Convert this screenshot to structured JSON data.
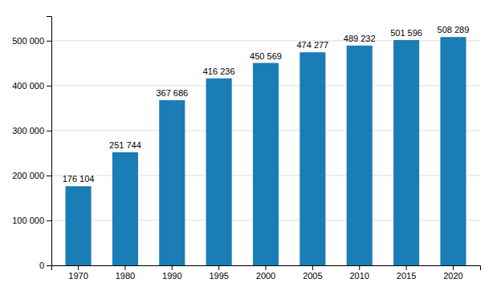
{
  "chart_data": {
    "type": "bar",
    "categories": [
      "1970",
      "1980",
      "1990",
      "1995",
      "2000",
      "2005",
      "2010",
      "2015",
      "2020"
    ],
    "values": [
      176104,
      251744,
      367686,
      416236,
      450569,
      474277,
      489232,
      501596,
      508289
    ],
    "value_labels": [
      "176 104",
      "251 744",
      "367 686",
      "416 236",
      "450 569",
      "474 277",
      "489 232",
      "501 596",
      "508 289"
    ],
    "data_labels": true,
    "color": "#1a7db5",
    "ylim": [
      0,
      555000
    ],
    "yticks": [
      0,
      {
        "value": 100000,
        "label": "100 000"
      },
      {
        "value": 200000,
        "label": "200 000"
      },
      {
        "value": 300000,
        "label": "300 000"
      },
      {
        "value": 400000,
        "label": "400 000"
      },
      {
        "value": 500000,
        "label": "500 000"
      }
    ],
    "grid": true
  }
}
